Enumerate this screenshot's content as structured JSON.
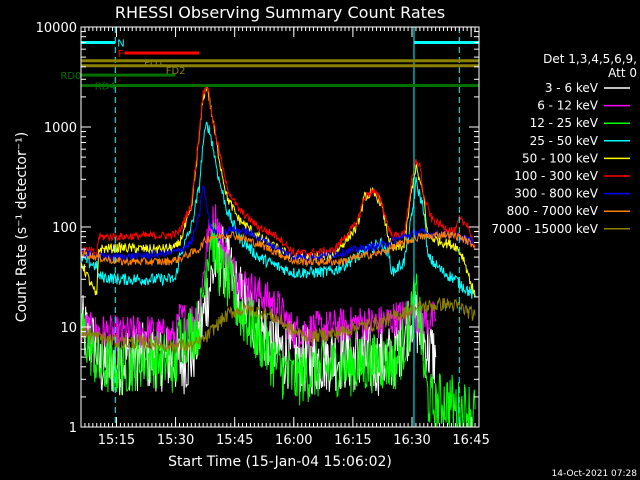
{
  "chart_data": {
    "type": "line",
    "title": "RHESSI Observing Summary Count Rates",
    "xlabel": "Start Time (15-Jan-04 15:06:02)",
    "ylabel": "Count Rate (s⁻¹ detector⁻¹)",
    "yscale": "log",
    "ylim": [
      1,
      10000
    ],
    "x_start": "15:06:02",
    "xlim_minutes": [
      0,
      101
    ],
    "x_ticks": [
      {
        "label": "15:15",
        "t": 9
      },
      {
        "label": "15:30",
        "t": 24
      },
      {
        "label": "15:45",
        "t": 39
      },
      {
        "label": "16:00",
        "t": 54
      },
      {
        "label": "16:15",
        "t": 69
      },
      {
        "label": "16:30",
        "t": 84
      },
      {
        "label": "16:45",
        "t": 99
      }
    ],
    "y_ticks": [
      {
        "label": "1",
        "v": 1
      },
      {
        "label": "10",
        "v": 10
      },
      {
        "label": "100",
        "v": 100
      },
      {
        "label": "1000",
        "v": 1000
      },
      {
        "label": "10000",
        "v": 10000
      }
    ],
    "legend_header": [
      "Det 1,3,4,5,6,9,",
      "Att 0"
    ],
    "legend_position": "right",
    "series": [
      {
        "name": "3 - 6 keV",
        "color": "#ffffff",
        "x": [
          0,
          4,
          4.5,
          10,
          12,
          17,
          22,
          25,
          28,
          31,
          32,
          33,
          35,
          37,
          38,
          39,
          42,
          46,
          50,
          54,
          58,
          64,
          70,
          76,
          79,
          82,
          84,
          85,
          86,
          88,
          90
        ],
        "y": [
          10,
          6,
          4,
          4.5,
          5,
          5,
          5,
          4.5,
          5,
          12,
          20,
          30,
          55,
          40,
          35,
          25,
          15,
          9,
          6,
          5,
          4.5,
          5,
          5,
          4.5,
          5,
          8,
          14,
          12,
          9,
          6,
          5
        ]
      },
      {
        "name": "6 - 12 keV",
        "color": "#ff00ff",
        "x": [
          0,
          4,
          4.5,
          10,
          17,
          22,
          24,
          25,
          28,
          30,
          32,
          33,
          34,
          37,
          40,
          45,
          50,
          54,
          58,
          64,
          70,
          76,
          79,
          82,
          84,
          85,
          86,
          88,
          90
        ],
        "y": [
          10,
          9,
          9,
          8.5,
          9,
          8,
          8,
          12,
          12,
          14,
          70,
          100,
          130,
          50,
          30,
          22,
          16,
          9,
          9.5,
          10,
          11,
          11,
          12,
          13,
          15,
          13,
          12,
          12,
          12
        ]
      },
      {
        "name": "12 - 25 keV",
        "color": "#00ff00",
        "x": [
          0,
          4,
          4.5,
          10,
          17,
          22,
          24,
          25,
          28,
          30,
          32,
          33,
          35,
          38,
          40,
          45,
          50,
          54,
          58,
          64,
          70,
          76,
          78,
          80,
          82,
          84,
          85,
          86,
          87,
          88,
          90,
          91,
          94,
          95,
          100
        ],
        "y": [
          10,
          4.5,
          4,
          4,
          5,
          4.5,
          4,
          8,
          9,
          10,
          50,
          90,
          40,
          25,
          15,
          8,
          4,
          3,
          3.5,
          4,
          4,
          4.5,
          4.5,
          4.5,
          7,
          14,
          20,
          12,
          4,
          2,
          1.5,
          1.8,
          1.8,
          1.5,
          1.5
        ]
      },
      {
        "name": "25 - 50 keV",
        "color": "#00ffff",
        "x": [
          0,
          4,
          4.5,
          10,
          17,
          22,
          24,
          25,
          28,
          30,
          31,
          32,
          33,
          35,
          37,
          40,
          45,
          50,
          54,
          58,
          64,
          70,
          76,
          78,
          79,
          82,
          84,
          85,
          87,
          88,
          92,
          95,
          100
        ],
        "y": [
          50,
          40,
          32,
          30,
          30,
          30,
          30,
          50,
          100,
          250,
          700,
          1100,
          800,
          300,
          150,
          80,
          50,
          40,
          35,
          35,
          36,
          50,
          70,
          55,
          35,
          45,
          130,
          280,
          150,
          50,
          35,
          30,
          20
        ]
      },
      {
        "name": "50 - 100 keV",
        "color": "#ffff00",
        "x": [
          0,
          4,
          4.5,
          10,
          17,
          20,
          24,
          25,
          28,
          30,
          31,
          32,
          33,
          35,
          37,
          40,
          45,
          50,
          54,
          58,
          64,
          70,
          72,
          74,
          76,
          78,
          79,
          82,
          84,
          85,
          87,
          88,
          92,
          95,
          97,
          100
        ],
        "y": [
          45,
          20,
          60,
          62,
          60,
          60,
          62,
          70,
          150,
          800,
          2000,
          2600,
          1500,
          500,
          200,
          120,
          80,
          60,
          50,
          50,
          52,
          100,
          200,
          220,
          180,
          80,
          60,
          65,
          250,
          400,
          200,
          80,
          70,
          65,
          50,
          20
        ]
      },
      {
        "name": "100 - 300 keV",
        "color": "#ff0000",
        "x": [
          0,
          4,
          4.5,
          10,
          17,
          22,
          24,
          25,
          28,
          30,
          31,
          32,
          33,
          35,
          37,
          40,
          45,
          50,
          54,
          58,
          64,
          70,
          72,
          74,
          76,
          78,
          79,
          82,
          84,
          85,
          86,
          87,
          89,
          92,
          95,
          96,
          97,
          98,
          100
        ],
        "y": [
          60,
          55,
          80,
          80,
          82,
          82,
          85,
          90,
          170,
          900,
          2200,
          2700,
          1500,
          600,
          250,
          150,
          100,
          80,
          55,
          55,
          58,
          110,
          200,
          230,
          190,
          100,
          80,
          85,
          300,
          450,
          420,
          200,
          120,
          100,
          90,
          120,
          110,
          110,
          60
        ]
      },
      {
        "name": "300 - 800 keV",
        "color": "#0000ff",
        "x": [
          0,
          6,
          10,
          17,
          22,
          25,
          28,
          30,
          31,
          32,
          33,
          35,
          38,
          42,
          46,
          50,
          54,
          60,
          66,
          70,
          76,
          80,
          84,
          86,
          88,
          92,
          96,
          100
        ],
        "y": [
          55,
          50,
          50,
          52,
          55,
          58,
          70,
          130,
          270,
          150,
          100,
          80,
          95,
          90,
          75,
          60,
          50,
          50,
          55,
          60,
          65,
          75,
          85,
          90,
          85,
          85,
          80,
          70
        ]
      },
      {
        "name": "800 - 7000 keV",
        "color": "#ff8000",
        "x": [
          0,
          6,
          10,
          17,
          22,
          25,
          28,
          30,
          31,
          32,
          33,
          35,
          38,
          42,
          46,
          50,
          54,
          60,
          66,
          70,
          76,
          80,
          84,
          86,
          88,
          92,
          96,
          100
        ],
        "y": [
          55,
          48,
          45,
          45,
          45,
          48,
          55,
          60,
          70,
          75,
          80,
          80,
          85,
          75,
          65,
          55,
          45,
          45,
          45,
          50,
          55,
          65,
          75,
          80,
          80,
          85,
          80,
          65
        ]
      },
      {
        "name": "7000 - 15000 keV",
        "color": "#8b8000",
        "x": [
          0,
          4,
          10,
          17,
          22,
          25,
          28,
          30,
          32,
          34,
          36,
          38,
          42,
          46,
          50,
          54,
          58,
          64,
          70,
          76,
          80,
          84,
          86,
          88,
          92,
          96,
          100
        ],
        "y": [
          9,
          8,
          7,
          7,
          6.5,
          6.5,
          6.5,
          7,
          8,
          10,
          12,
          14,
          15,
          14,
          12,
          9,
          8,
          8.5,
          10,
          11,
          13,
          15,
          16,
          16,
          17,
          16,
          13
        ]
      }
    ],
    "annotations": [
      {
        "label": "N",
        "color": "#00ffff",
        "t": [
          0,
          8.7
        ],
        "v": 7000
      },
      {
        "label": "N",
        "color": "#00ffff",
        "t": [
          84.5,
          101
        ],
        "v": 7000
      },
      {
        "label": "F",
        "color": "#ff0000",
        "t": [
          11,
          30
        ],
        "v": 5500
      },
      {
        "label": "FD1",
        "color": "#8b8000",
        "t": [
          0,
          101
        ],
        "v": 4600
      },
      {
        "label": "FD2",
        "color": "#8b8000",
        "t": [
          0,
          101
        ],
        "v": 4100
      },
      {
        "label": "RD0",
        "color": "#007000",
        "t": [
          0,
          24
        ],
        "v": 3300
      },
      {
        "label": "RD4",
        "color": "#007000",
        "t": [
          0,
          101
        ],
        "v": 2600
      }
    ],
    "vlines": [
      {
        "t": 0,
        "color": "#00ffff",
        "style": "solid"
      },
      {
        "t": 8.7,
        "color": "#00ffff",
        "style": "dashed"
      },
      {
        "t": 84.5,
        "color": "#00ffff",
        "style": "solid"
      },
      {
        "t": 96,
        "color": "#00ffff",
        "style": "dashed"
      }
    ],
    "footer_date": "14-Oct-2021 07:28"
  }
}
